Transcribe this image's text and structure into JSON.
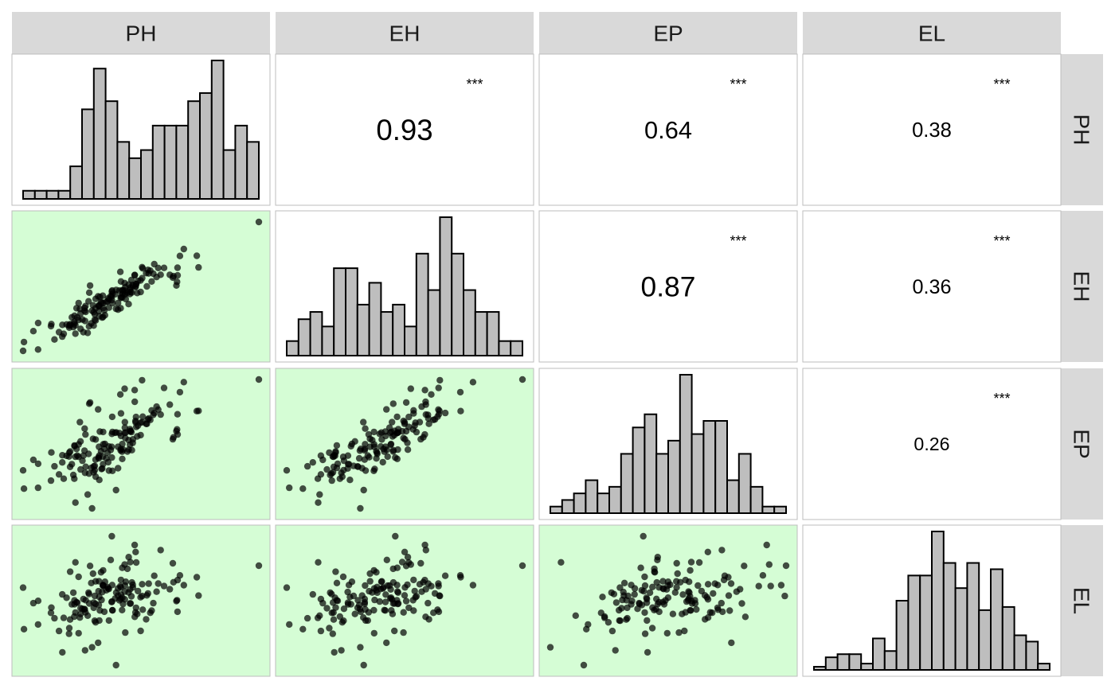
{
  "colors": {
    "strip_fill": "#d9d9d9",
    "strip_text": "#1a1a1a",
    "panel_border": "#bdbdbd",
    "scatter_bg": "#d5fdd5",
    "point": "#000000",
    "bar_fill": "#bebebe",
    "bar_stroke": "#000000"
  },
  "chart_data": {
    "type": "scatter-matrix",
    "variables": [
      "PH",
      "EH",
      "EP",
      "EL"
    ],
    "diagonal": "histogram",
    "lower": "scatter",
    "upper": "correlation",
    "histograms": {
      "PH": [
        1,
        1,
        1,
        1,
        4,
        11,
        16,
        12,
        7,
        5,
        6,
        9,
        9,
        9,
        12,
        13,
        17,
        6,
        9,
        7
      ],
      "EH": [
        2,
        5,
        6,
        4,
        12,
        12,
        7,
        10,
        6,
        7,
        4,
        14,
        9,
        19,
        14,
        9,
        6,
        6,
        2,
        2
      ],
      "EP": [
        1,
        2,
        3,
        5,
        3,
        4,
        9,
        13,
        15,
        9,
        11,
        21,
        12,
        14,
        14,
        5,
        9,
        4,
        1,
        1
      ],
      "EL": [
        1,
        4,
        5,
        5,
        2,
        10,
        6,
        22,
        30,
        30,
        44,
        34,
        26,
        34,
        19,
        32,
        20,
        11,
        9,
        2
      ]
    },
    "correlations": [
      {
        "pair": [
          "PH",
          "EH"
        ],
        "label": "0.93",
        "stars": "***"
      },
      {
        "pair": [
          "PH",
          "EP"
        ],
        "label": "0.64",
        "stars": "***"
      },
      {
        "pair": [
          "PH",
          "EL"
        ],
        "label": "0.38",
        "stars": "***"
      },
      {
        "pair": [
          "EH",
          "EP"
        ],
        "label": "0.87",
        "stars": "***"
      },
      {
        "pair": [
          "EH",
          "EL"
        ],
        "label": "0.36",
        "stars": "***"
      },
      {
        "pair": [
          "EP",
          "EL"
        ],
        "label": "0.26",
        "stars": "***"
      }
    ],
    "scatter_points": 150,
    "scatter_seed": 7
  }
}
